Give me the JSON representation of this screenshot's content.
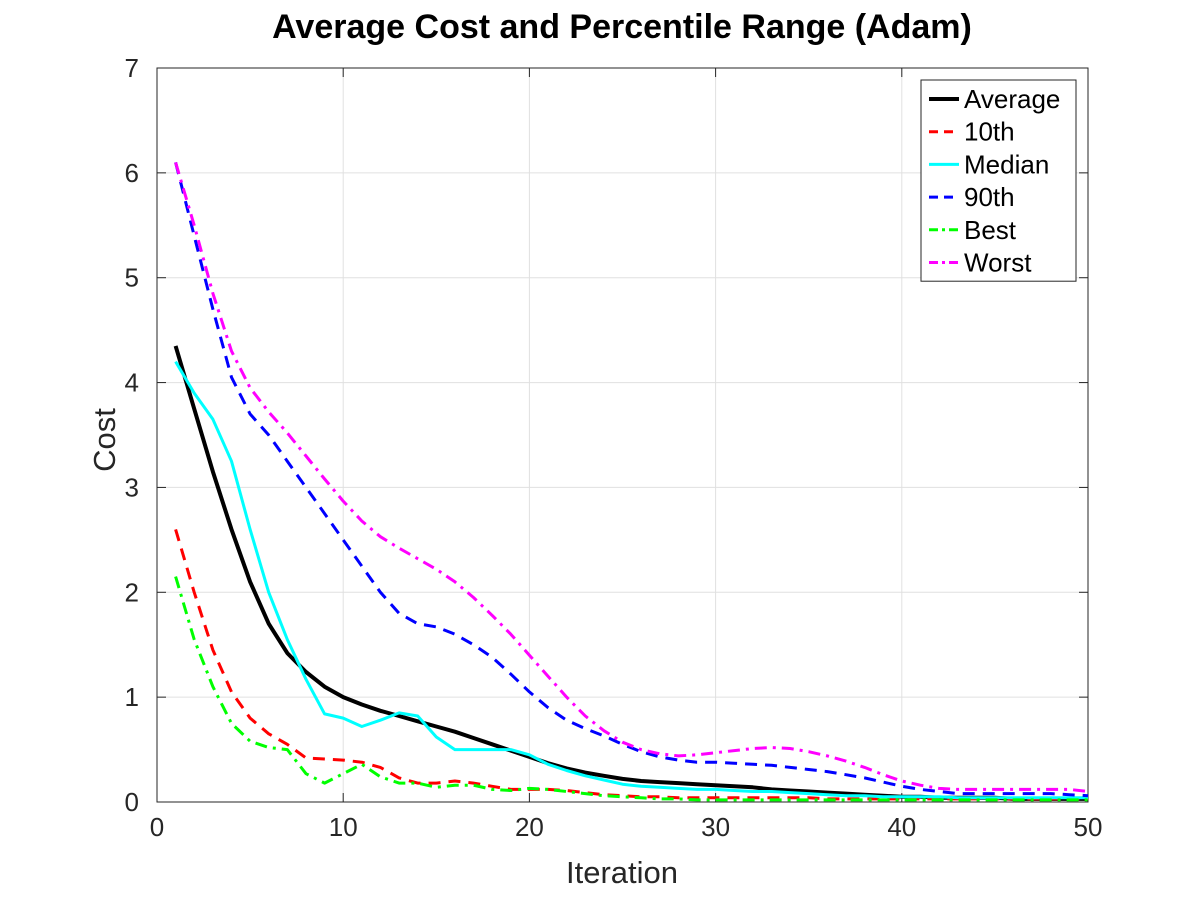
{
  "chart_data": {
    "type": "line",
    "title": "Average Cost and Percentile Range (Adam)",
    "xlabel": "Iteration",
    "ylabel": "Cost",
    "xlim": [
      0,
      50
    ],
    "ylim": [
      0,
      7
    ],
    "xticks": [
      0,
      10,
      20,
      30,
      40,
      50
    ],
    "yticks": [
      0,
      1,
      2,
      3,
      4,
      5,
      6,
      7
    ],
    "grid": true,
    "legend_position": "top-right",
    "x": [
      1,
      2,
      3,
      4,
      5,
      6,
      7,
      8,
      9,
      10,
      11,
      12,
      13,
      14,
      15,
      16,
      17,
      18,
      19,
      20,
      21,
      22,
      23,
      24,
      25,
      26,
      27,
      28,
      29,
      30,
      31,
      32,
      33,
      34,
      35,
      36,
      37,
      38,
      39,
      40,
      41,
      42,
      43,
      44,
      45,
      46,
      47,
      48,
      49,
      50
    ],
    "series": [
      {
        "name": "Average",
        "color": "#000000",
        "style": "solid",
        "width": 4,
        "values": [
          4.35,
          3.75,
          3.15,
          2.6,
          2.1,
          1.7,
          1.42,
          1.24,
          1.1,
          1.0,
          0.93,
          0.87,
          0.82,
          0.77,
          0.72,
          0.67,
          0.61,
          0.55,
          0.49,
          0.43,
          0.37,
          0.32,
          0.28,
          0.25,
          0.22,
          0.2,
          0.19,
          0.18,
          0.17,
          0.16,
          0.15,
          0.14,
          0.12,
          0.11,
          0.1,
          0.09,
          0.08,
          0.07,
          0.06,
          0.05,
          0.05,
          0.04,
          0.04,
          0.04,
          0.04,
          0.03,
          0.03,
          0.03,
          0.03,
          0.03
        ]
      },
      {
        "name": "10th",
        "color": "#ff0000",
        "style": "dashed",
        "width": 3,
        "values": [
          2.6,
          2.0,
          1.45,
          1.05,
          0.8,
          0.65,
          0.55,
          0.42,
          0.41,
          0.4,
          0.38,
          0.33,
          0.23,
          0.18,
          0.18,
          0.2,
          0.18,
          0.15,
          0.12,
          0.12,
          0.12,
          0.11,
          0.09,
          0.07,
          0.06,
          0.05,
          0.05,
          0.04,
          0.04,
          0.04,
          0.04,
          0.04,
          0.04,
          0.04,
          0.04,
          0.03,
          0.03,
          0.03,
          0.03,
          0.03,
          0.03,
          0.03,
          0.03,
          0.03,
          0.03,
          0.03,
          0.03,
          0.03,
          0.03,
          0.03
        ]
      },
      {
        "name": "Median",
        "color": "#00ffff",
        "style": "solid",
        "width": 3,
        "values": [
          4.2,
          3.9,
          3.65,
          3.25,
          2.6,
          2.0,
          1.55,
          1.17,
          0.84,
          0.8,
          0.72,
          0.78,
          0.85,
          0.82,
          0.62,
          0.5,
          0.5,
          0.5,
          0.5,
          0.45,
          0.36,
          0.3,
          0.25,
          0.21,
          0.17,
          0.15,
          0.14,
          0.13,
          0.12,
          0.12,
          0.11,
          0.1,
          0.1,
          0.09,
          0.08,
          0.07,
          0.06,
          0.06,
          0.05,
          0.05,
          0.05,
          0.05,
          0.04,
          0.04,
          0.04,
          0.04,
          0.04,
          0.04,
          0.04,
          0.04
        ]
      },
      {
        "name": "90th",
        "color": "#0000ff",
        "style": "dashed",
        "width": 3,
        "values": [
          6.1,
          5.4,
          4.7,
          4.05,
          3.7,
          3.5,
          3.25,
          3.0,
          2.75,
          2.5,
          2.25,
          2.0,
          1.8,
          1.7,
          1.67,
          1.6,
          1.5,
          1.38,
          1.22,
          1.05,
          0.9,
          0.78,
          0.7,
          0.63,
          0.55,
          0.48,
          0.43,
          0.4,
          0.38,
          0.38,
          0.37,
          0.36,
          0.35,
          0.33,
          0.31,
          0.29,
          0.26,
          0.23,
          0.19,
          0.15,
          0.12,
          0.1,
          0.08,
          0.08,
          0.08,
          0.08,
          0.08,
          0.08,
          0.07,
          0.06
        ]
      },
      {
        "name": "Best",
        "color": "#00ff00",
        "style": "dashdot",
        "width": 3,
        "values": [
          2.15,
          1.55,
          1.1,
          0.75,
          0.58,
          0.52,
          0.5,
          0.27,
          0.18,
          0.27,
          0.36,
          0.24,
          0.18,
          0.18,
          0.14,
          0.16,
          0.16,
          0.12,
          0.11,
          0.13,
          0.12,
          0.1,
          0.08,
          0.06,
          0.05,
          0.04,
          0.03,
          0.03,
          0.02,
          0.02,
          0.02,
          0.02,
          0.02,
          0.02,
          0.02,
          0.02,
          0.02,
          0.02,
          0.02,
          0.02,
          0.02,
          0.02,
          0.02,
          0.02,
          0.02,
          0.02,
          0.02,
          0.02,
          0.02,
          0.02
        ]
      },
      {
        "name": "Worst",
        "color": "#ff00ff",
        "style": "dashdot",
        "width": 3,
        "values": [
          6.1,
          5.5,
          4.85,
          4.3,
          3.95,
          3.72,
          3.52,
          3.3,
          3.08,
          2.87,
          2.68,
          2.53,
          2.42,
          2.32,
          2.22,
          2.1,
          1.95,
          1.78,
          1.6,
          1.4,
          1.2,
          1.0,
          0.82,
          0.68,
          0.57,
          0.5,
          0.46,
          0.44,
          0.45,
          0.47,
          0.49,
          0.51,
          0.52,
          0.51,
          0.48,
          0.44,
          0.39,
          0.33,
          0.26,
          0.2,
          0.16,
          0.13,
          0.12,
          0.12,
          0.12,
          0.12,
          0.12,
          0.12,
          0.12,
          0.1
        ]
      }
    ]
  }
}
